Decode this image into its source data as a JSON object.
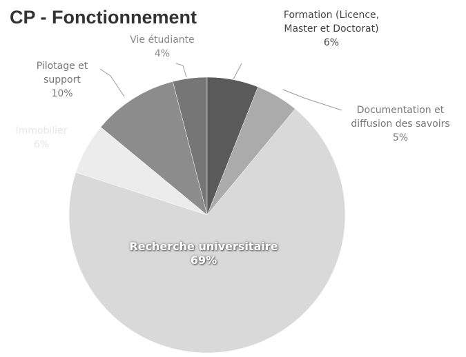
{
  "chart_data": {
    "type": "pie",
    "title": "CP - Fonctionnement",
    "categories": [
      "Formation (Licence, Master et Doctorat)",
      "Documentation et diffusion des savoirs",
      "Recherche universitaire",
      "Immobilier",
      "Pilotage et support",
      "Vie étudiante"
    ],
    "values": [
      6,
      5,
      69,
      6,
      10,
      4
    ],
    "value_labels": [
      "6%",
      "5%",
      "69%",
      "6%",
      "10%",
      "4%"
    ],
    "colors": [
      "#5a5a5a",
      "#ababab",
      "#d9d9d9",
      "#ececec",
      "#8c8c8c",
      "#767676"
    ]
  }
}
